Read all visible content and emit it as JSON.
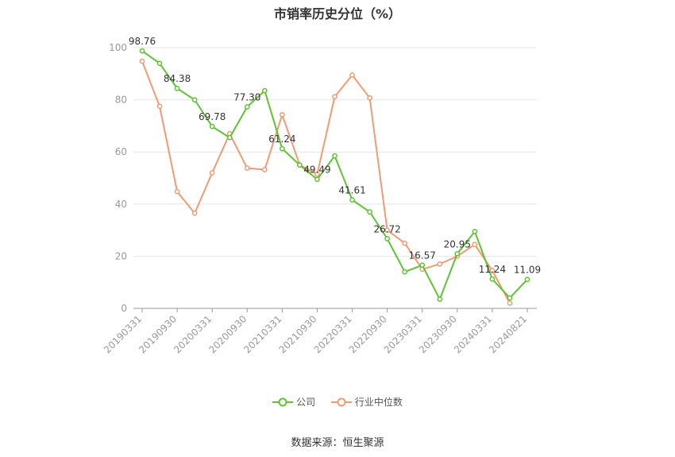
{
  "title": "市销率历史分位（%）",
  "source": "数据来源：恒生聚源",
  "legend": {
    "company": "公司",
    "industry": "行业中位数"
  },
  "colors": {
    "company": "#5ec433",
    "industry": "#f39a71",
    "grid": "#e6e6e6",
    "axis": "#999999"
  },
  "chart_data": {
    "type": "line",
    "title": "市销率历史分位（%）",
    "ylim": [
      0,
      100
    ],
    "yticks": [
      0,
      20,
      40,
      60,
      80,
      100
    ],
    "xticks": [
      "20190331",
      "20190930",
      "20200331",
      "20200930",
      "20210331",
      "20210930",
      "20220331",
      "20220930",
      "20230331",
      "20230930",
      "20240331",
      "20240821"
    ],
    "x": [
      "20190331",
      "20190630",
      "20190930",
      "20191231",
      "20200331",
      "20200630",
      "20200930",
      "20201231",
      "20210331",
      "20210630",
      "20210930",
      "20211231",
      "20220331",
      "20220630",
      "20220930",
      "20221231",
      "20230331",
      "20230630",
      "20230930",
      "20231231",
      "20240331",
      "20240630",
      "20240821"
    ],
    "series": [
      {
        "name": "公司",
        "values": [
          98.76,
          94.0,
          84.38,
          80.0,
          69.78,
          65.5,
          77.3,
          83.5,
          61.24,
          55.0,
          49.49,
          58.5,
          41.61,
          37.0,
          26.72,
          14.0,
          16.57,
          3.5,
          20.95,
          29.5,
          11.24,
          4.0,
          11.09
        ],
        "labels": [
          "98.76",
          null,
          "84.38",
          null,
          "69.78",
          null,
          "77.30",
          null,
          "61.24",
          null,
          "49.49",
          null,
          "41.61",
          null,
          "26.72",
          null,
          "16.57",
          null,
          "20.95",
          null,
          "11.24",
          null,
          "11.09"
        ]
      },
      {
        "name": "行业中位数",
        "values": [
          94.8,
          77.5,
          44.8,
          36.5,
          52.0,
          67.0,
          53.8,
          53.2,
          74.3,
          55.0,
          51.5,
          81.2,
          89.5,
          80.7,
          30.0,
          25.0,
          15.0,
          17.0,
          20.0,
          24.5,
          14.5,
          2.0,
          null
        ]
      }
    ]
  }
}
